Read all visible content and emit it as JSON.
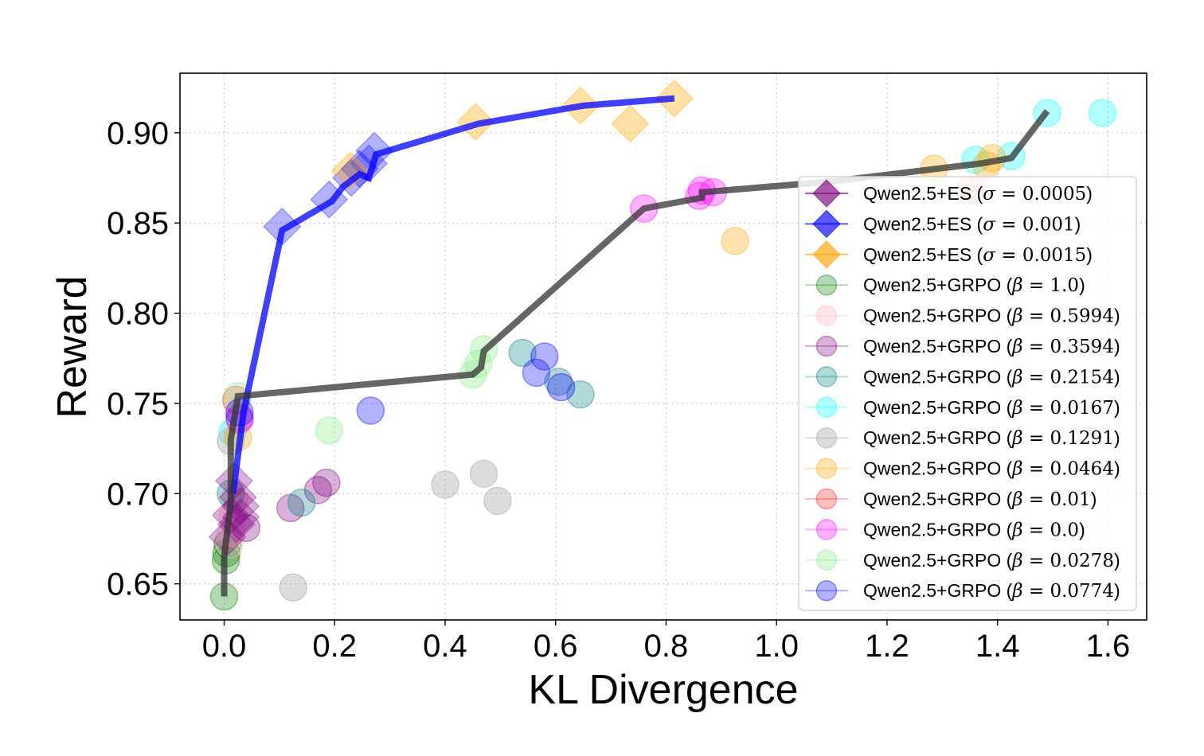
{
  "chart_data": {
    "type": "scatter",
    "title": "",
    "xlabel": "KL Divergence",
    "ylabel": "Reward",
    "xlim": [
      -0.08,
      1.67
    ],
    "ylim": [
      0.63,
      0.933
    ],
    "grid": true,
    "legend_position": "lower-right",
    "xticks": [
      0.0,
      0.2,
      0.4,
      0.6,
      0.8,
      1.0,
      1.2,
      1.4,
      1.6
    ],
    "xtick_labels": [
      "0.0",
      "0.2",
      "0.4",
      "0.6",
      "0.8",
      "1.0",
      "1.2",
      "1.4",
      "1.6"
    ],
    "yticks": [
      0.65,
      0.7,
      0.75,
      0.8,
      0.85,
      0.9
    ],
    "ytick_labels": [
      "0.65",
      "0.70",
      "0.75",
      "0.80",
      "0.85",
      "0.90"
    ],
    "frontier_lines": [
      {
        "name": "ES frontier",
        "color": "#0000ff",
        "points": [
          [
            0.016,
            0.7
          ],
          [
            0.035,
            0.745
          ],
          [
            0.105,
            0.846
          ],
          [
            0.195,
            0.862
          ],
          [
            0.215,
            0.87
          ],
          [
            0.245,
            0.877
          ],
          [
            0.262,
            0.875
          ],
          [
            0.275,
            0.888
          ],
          [
            0.46,
            0.905
          ],
          [
            0.65,
            0.915
          ],
          [
            0.815,
            0.919
          ]
        ]
      },
      {
        "name": "GRPO frontier",
        "color": "#333333",
        "points": [
          [
            0.0,
            0.643
          ],
          [
            0.0,
            0.665
          ],
          [
            0.012,
            0.695
          ],
          [
            0.012,
            0.73
          ],
          [
            0.025,
            0.754
          ],
          [
            0.45,
            0.766
          ],
          [
            0.465,
            0.77
          ],
          [
            0.47,
            0.779
          ],
          [
            0.76,
            0.858
          ],
          [
            0.865,
            0.864
          ],
          [
            0.865,
            0.867
          ],
          [
            1.1,
            0.873
          ],
          [
            1.37,
            0.883
          ],
          [
            1.425,
            0.886
          ],
          [
            1.49,
            0.912
          ]
        ]
      }
    ],
    "series": [
      {
        "name": "Qwen2.5+ES",
        "param_symbol": "σ",
        "param_value": "0.0005",
        "marker": "diamond",
        "color": "#800080",
        "alpha": 0.3,
        "points": [
          [
            0.018,
            0.707
          ],
          [
            0.025,
            0.698
          ],
          [
            0.03,
            0.693
          ],
          [
            0.012,
            0.688
          ],
          [
            0.03,
            0.687
          ],
          [
            0.006,
            0.676
          ],
          [
            0.022,
            0.683
          ]
        ]
      },
      {
        "name": "Qwen2.5+ES",
        "param_symbol": "σ",
        "param_value": "0.001",
        "marker": "diamond",
        "color": "#0000ff",
        "alpha": 0.3,
        "points": [
          [
            0.105,
            0.848
          ],
          [
            0.19,
            0.863
          ],
          [
            0.23,
            0.875
          ],
          [
            0.245,
            0.88
          ],
          [
            0.262,
            0.883
          ],
          [
            0.272,
            0.89
          ]
        ]
      },
      {
        "name": "Qwen2.5+ES",
        "param_symbol": "σ",
        "param_value": "0.0015",
        "marker": "diamond",
        "color": "#ffa500",
        "alpha": 0.35,
        "points": [
          [
            0.228,
            0.879
          ],
          [
            0.455,
            0.906
          ],
          [
            0.645,
            0.915
          ],
          [
            0.735,
            0.905
          ],
          [
            0.815,
            0.919
          ]
        ]
      },
      {
        "name": "Qwen2.5+GRPO",
        "param_symbol": "β",
        "param_value": "1.0",
        "marker": "circle",
        "color": "#008000",
        "alpha": 0.3,
        "points": [
          [
            0.0,
            0.643
          ],
          [
            0.003,
            0.663
          ],
          [
            0.004,
            0.667
          ],
          [
            0.006,
            0.672
          ]
        ]
      },
      {
        "name": "Qwen2.5+GRPO",
        "param_symbol": "β",
        "param_value": "0.5994",
        "marker": "circle",
        "color": "#ffc0cb",
        "alpha": 0.4,
        "points": [
          [
            0.018,
            0.697
          ],
          [
            0.015,
            0.687
          ],
          [
            0.012,
            0.678
          ],
          [
            0.01,
            0.672
          ],
          [
            1.36,
            0.868
          ],
          [
            1.46,
            0.864
          ]
        ]
      },
      {
        "name": "Qwen2.5+GRPO",
        "param_symbol": "β",
        "param_value": "0.3594",
        "marker": "circle",
        "color": "#800080",
        "alpha": 0.3,
        "points": [
          [
            0.12,
            0.692
          ],
          [
            0.17,
            0.702
          ],
          [
            0.185,
            0.706
          ],
          [
            0.04,
            0.681
          ],
          [
            0.028,
            0.742
          ]
        ]
      },
      {
        "name": "Qwen2.5+GRPO",
        "param_symbol": "β",
        "param_value": "0.2154",
        "marker": "circle",
        "color": "#008080",
        "alpha": 0.3,
        "points": [
          [
            0.012,
            0.7
          ],
          [
            0.14,
            0.695
          ],
          [
            0.54,
            0.778
          ],
          [
            0.605,
            0.762
          ],
          [
            0.645,
            0.755
          ]
        ]
      },
      {
        "name": "Qwen2.5+GRPO",
        "param_symbol": "β",
        "param_value": "0.0167",
        "marker": "circle",
        "color": "#00ffff",
        "alpha": 0.3,
        "points": [
          [
            0.015,
            0.734
          ],
          [
            1.36,
            0.885
          ],
          [
            1.425,
            0.887
          ],
          [
            1.49,
            0.911
          ],
          [
            1.59,
            0.911
          ]
        ]
      },
      {
        "name": "Qwen2.5+GRPO",
        "param_symbol": "β",
        "param_value": "0.1291",
        "marker": "circle",
        "color": "#a9a9a9",
        "alpha": 0.4,
        "points": [
          [
            0.012,
            0.729
          ],
          [
            0.125,
            0.648
          ],
          [
            0.4,
            0.705
          ],
          [
            0.47,
            0.711
          ],
          [
            0.495,
            0.696
          ]
        ]
      },
      {
        "name": "Qwen2.5+GRPO",
        "param_symbol": "β",
        "param_value": "0.0464",
        "marker": "circle",
        "color": "#ffa500",
        "alpha": 0.3,
        "points": [
          [
            0.025,
            0.731
          ],
          [
            0.925,
            0.84
          ],
          [
            1.285,
            0.88
          ],
          [
            1.38,
            0.882
          ],
          [
            1.39,
            0.886
          ]
        ]
      },
      {
        "name": "Qwen2.5+GRPO",
        "param_symbol": "β",
        "param_value": "0.01",
        "marker": "circle",
        "color": "#ff0000",
        "alpha": 0.25,
        "points": [
          [
            0.022,
            0.752
          ],
          [
            1.35,
            0.868
          ]
        ]
      },
      {
        "name": "Qwen2.5+GRPO",
        "param_symbol": "β",
        "param_value": "0.0",
        "marker": "circle",
        "color": "#ff00ff",
        "alpha": 0.3,
        "points": [
          [
            0.028,
            0.741
          ],
          [
            0.76,
            0.858
          ],
          [
            0.86,
            0.865
          ],
          [
            0.865,
            0.868
          ],
          [
            0.885,
            0.867
          ]
        ]
      },
      {
        "name": "Qwen2.5+GRPO",
        "param_symbol": "β",
        "param_value": "0.0278",
        "marker": "circle",
        "color": "#90ee90",
        "alpha": 0.35,
        "points": [
          [
            0.025,
            0.754
          ],
          [
            0.19,
            0.735
          ],
          [
            0.45,
            0.766
          ],
          [
            0.46,
            0.772
          ],
          [
            0.47,
            0.78
          ]
        ]
      },
      {
        "name": "Qwen2.5+GRPO",
        "param_symbol": "β",
        "param_value": "0.0774",
        "marker": "circle",
        "color": "#0000ff",
        "alpha": 0.3,
        "points": [
          [
            0.028,
            0.745
          ],
          [
            0.265,
            0.746
          ],
          [
            0.565,
            0.767
          ],
          [
            0.58,
            0.776
          ],
          [
            0.61,
            0.759
          ]
        ]
      }
    ]
  }
}
